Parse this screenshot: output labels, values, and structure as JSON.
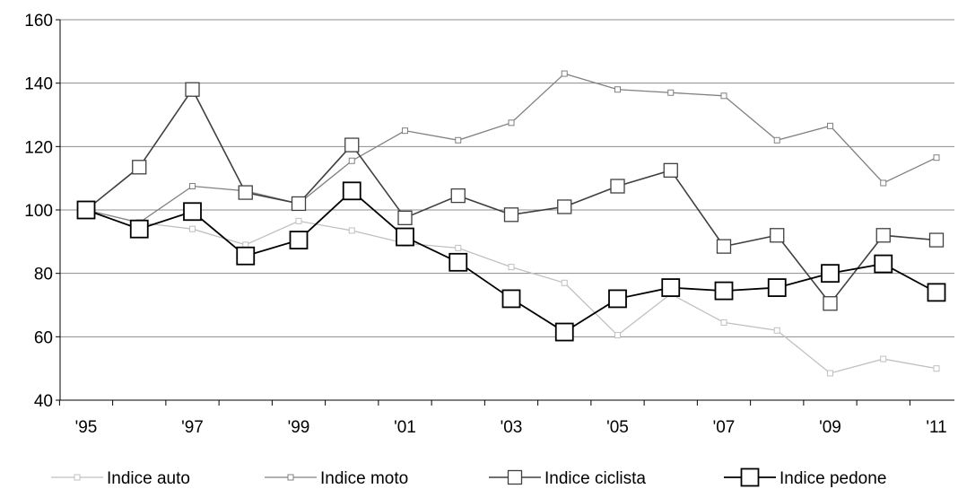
{
  "chart_data": {
    "type": "line",
    "title": "",
    "xlabel": "",
    "ylabel": "",
    "x": [
      "'95",
      "'96",
      "'97",
      "'98",
      "'99",
      "'00",
      "'01",
      "'02",
      "'03",
      "'04",
      "'05",
      "'06",
      "'07",
      "'08",
      "'09",
      "'10",
      "'11"
    ],
    "x_tick_labels": [
      "'95",
      "'97",
      "'99",
      "'01",
      "'03",
      "'05",
      "'07",
      "'09",
      "'11"
    ],
    "ylim": [
      40,
      160
    ],
    "y_ticks": [
      40,
      60,
      80,
      100,
      120,
      140,
      160
    ],
    "grid": "horizontal",
    "legend_position": "bottom",
    "series": [
      {
        "name": "Indice auto",
        "color": "#c0c0c0",
        "marker": "small-square",
        "values": [
          100,
          96,
          94,
          89,
          96.5,
          93.5,
          89.5,
          88,
          82,
          77,
          60.5,
          73.5,
          64.5,
          62,
          48.5,
          53,
          50
        ]
      },
      {
        "name": "Indice moto",
        "color": "#808080",
        "marker": "small-square",
        "values": [
          100,
          96,
          107.5,
          106,
          102,
          115.5,
          125,
          122,
          127.5,
          143,
          138,
          137,
          136,
          122,
          126.5,
          108.5,
          116.5
        ]
      },
      {
        "name": "Indice ciclista",
        "color": "#404040",
        "marker": "square",
        "values": [
          100,
          113.5,
          138,
          105.5,
          102,
          120.5,
          97.5,
          104.5,
          98.5,
          101,
          107.5,
          112.5,
          88.5,
          92,
          70.5,
          92,
          90.5
        ]
      },
      {
        "name": "Indice pedone",
        "color": "#000000",
        "marker": "large-square",
        "values": [
          100,
          94,
          99.5,
          85.5,
          90.5,
          106,
          91.5,
          83.5,
          72,
          61.5,
          72,
          75.5,
          74.5,
          75.5,
          80,
          83,
          74
        ]
      }
    ]
  }
}
